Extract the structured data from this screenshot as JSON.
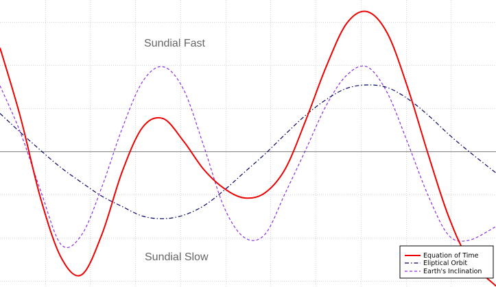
{
  "chart_data": {
    "type": "line",
    "title": "",
    "xlabel": "",
    "ylabel": "",
    "xlim": [
      0,
      365
    ],
    "ylim": [
      -16,
      17
    ],
    "grid": true,
    "legend_position": "bottom-right",
    "annotations": [
      {
        "name": "annotation-sundial-fast",
        "text": "Sundial Fast"
      },
      {
        "name": "annotation-sundial-slow",
        "text": "Sundial Slow"
      }
    ],
    "x": [
      0,
      15,
      30,
      45,
      60,
      75,
      90,
      105,
      120,
      135,
      150,
      165,
      180,
      195,
      210,
      225,
      240,
      255,
      270,
      285,
      300,
      315,
      330,
      345,
      365
    ],
    "series": [
      {
        "name": "Equation of Time",
        "color": "#ee0000",
        "dash": "solid",
        "values": [
          12,
          4,
          -5.5,
          -12.3,
          -14.3,
          -9.6,
          -2.3,
          2.8,
          3.8,
          1.2,
          -2.1,
          -4.3,
          -5.4,
          -4.8,
          -2,
          3.6,
          9.8,
          14.8,
          16.2,
          13.7,
          7.4,
          -0.3,
          -7.5,
          -12.5,
          -15.6
        ]
      },
      {
        "name": "Eliptical Orbit",
        "color": "#000066",
        "dash": "dashdot",
        "values": [
          4.4,
          2.2,
          0.1,
          -1.9,
          -3.6,
          -5.2,
          -6.4,
          -7.5,
          -7.8,
          -7.4,
          -6.3,
          -4.5,
          -2.4,
          -0.3,
          2,
          4.2,
          6,
          7.3,
          7.7,
          7.4,
          6.1,
          4.2,
          2,
          0,
          -2.5
        ]
      },
      {
        "name": "Earth's Inclination",
        "color": "#8a2be2",
        "dash": "dashed",
        "values": [
          7.6,
          2.2,
          -4.6,
          -10.8,
          -9.7,
          -4.1,
          2.7,
          8.1,
          9.8,
          7.2,
          0.6,
          -6.5,
          -10,
          -9.6,
          -4.8,
          0.2,
          5.3,
          8.8,
          9.8,
          6.8,
          1,
          -5.1,
          -9.7,
          -10.3,
          -8.7
        ]
      }
    ]
  }
}
